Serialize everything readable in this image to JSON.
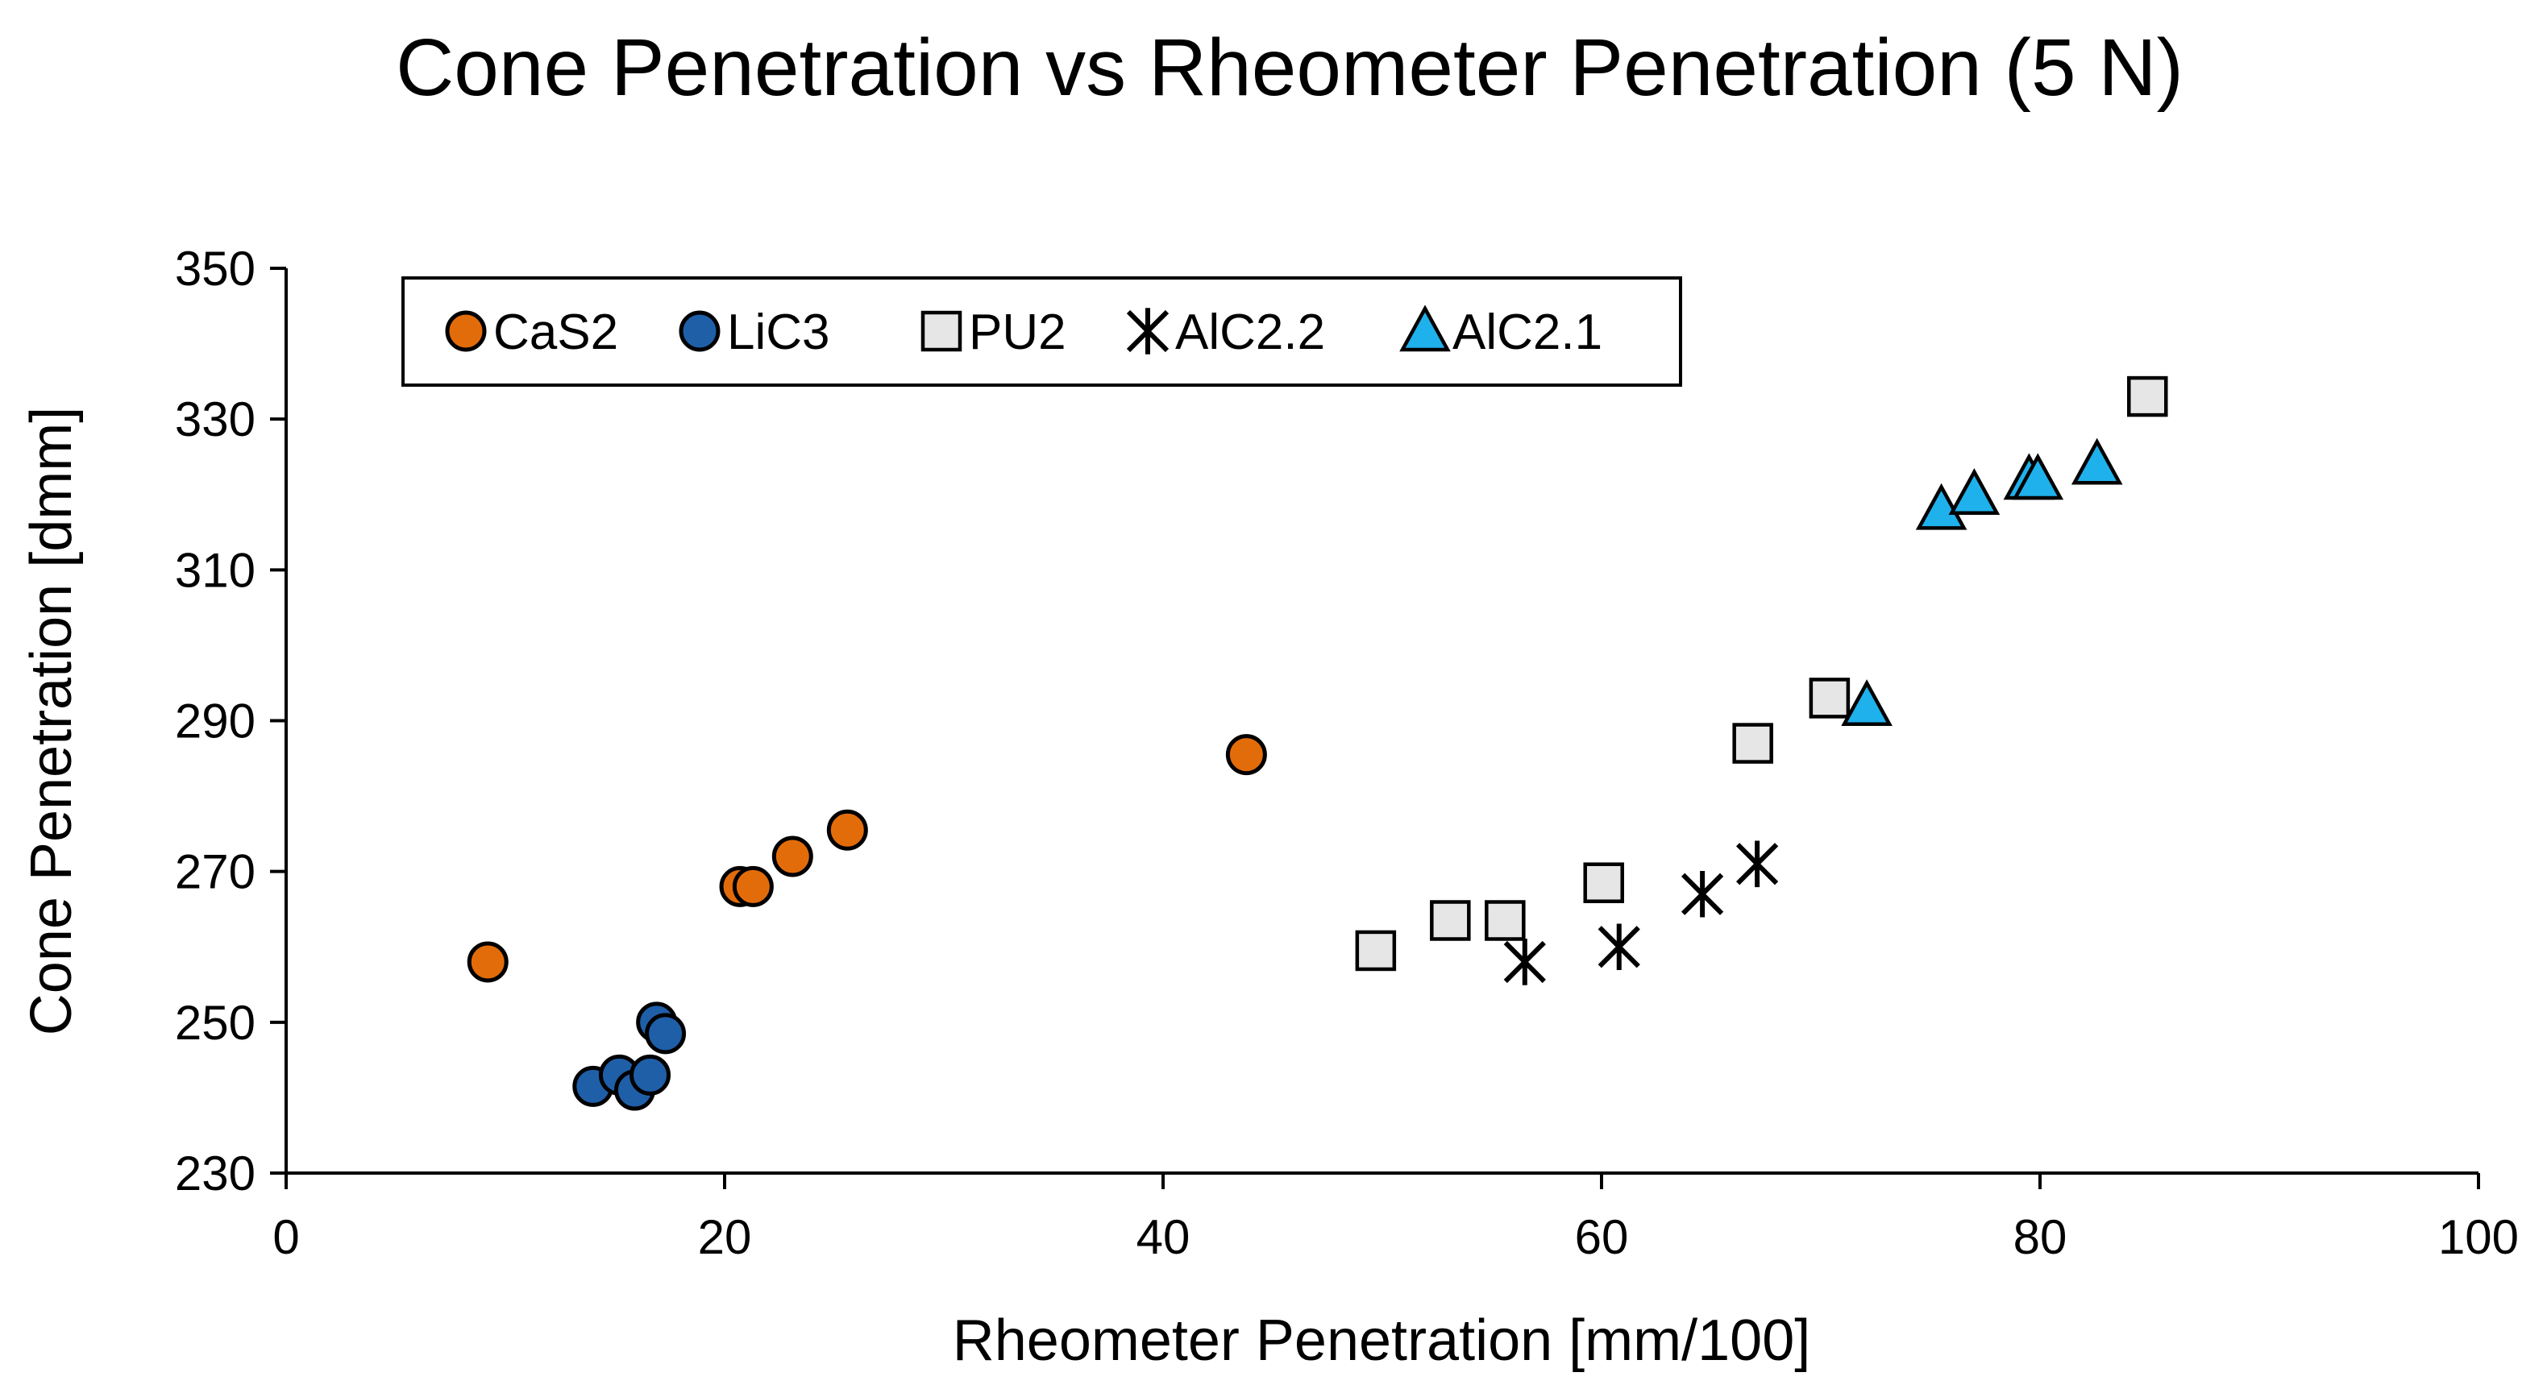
{
  "chart_data": {
    "type": "scatter",
    "title": "Cone Penetration vs Rheometer Penetration (5 N)",
    "xlabel": "Rheometer Penetration [mm/100]",
    "ylabel": "Cone Penetration [dmm]",
    "xlim": [
      0,
      100
    ],
    "ylim": [
      230,
      350
    ],
    "xticks": [
      0,
      20,
      40,
      60,
      80,
      100
    ],
    "yticks": [
      230,
      250,
      270,
      290,
      310,
      330,
      350
    ],
    "xtick_labels": [
      "0",
      "20",
      "40",
      "60",
      "80",
      "100"
    ],
    "ytick_labels": [
      "230",
      "250",
      "270",
      "290",
      "310",
      "330",
      "350"
    ],
    "grid": false,
    "legend_position": "top-left",
    "series": [
      {
        "name": "CaS2",
        "marker": "circle",
        "fill": "#E36C0A",
        "points": [
          [
            9.2,
            258
          ],
          [
            20.7,
            268
          ],
          [
            21.3,
            268
          ],
          [
            23.1,
            272
          ],
          [
            25.6,
            275.5
          ],
          [
            43.8,
            285.5
          ]
        ]
      },
      {
        "name": "LiC3",
        "marker": "circle",
        "fill": "#1F5FA8",
        "points": [
          [
            14.0,
            241.5
          ],
          [
            15.2,
            243
          ],
          [
            15.9,
            241
          ],
          [
            16.6,
            243
          ],
          [
            16.9,
            250
          ],
          [
            17.3,
            248.5
          ]
        ]
      },
      {
        "name": "PU2",
        "marker": "square",
        "fill": "#E6E6E6",
        "points": [
          [
            49.7,
            259.5
          ],
          [
            53.1,
            263.5
          ],
          [
            55.6,
            263.5
          ],
          [
            60.1,
            268.5
          ],
          [
            66.9,
            287
          ],
          [
            70.4,
            293
          ],
          [
            84.9,
            333
          ]
        ]
      },
      {
        "name": "AlC2.2",
        "marker": "star",
        "fill": "#000000",
        "points": [
          [
            56.5,
            258
          ],
          [
            60.8,
            260
          ],
          [
            64.6,
            267
          ],
          [
            67.1,
            271
          ]
        ]
      },
      {
        "name": "AlC2.1",
        "marker": "triangle",
        "fill": "#1FB1EC",
        "points": [
          [
            72.1,
            292
          ],
          [
            75.5,
            318
          ],
          [
            77.0,
            320
          ],
          [
            79.5,
            322
          ],
          [
            79.9,
            322
          ],
          [
            82.6,
            324
          ]
        ]
      }
    ]
  }
}
